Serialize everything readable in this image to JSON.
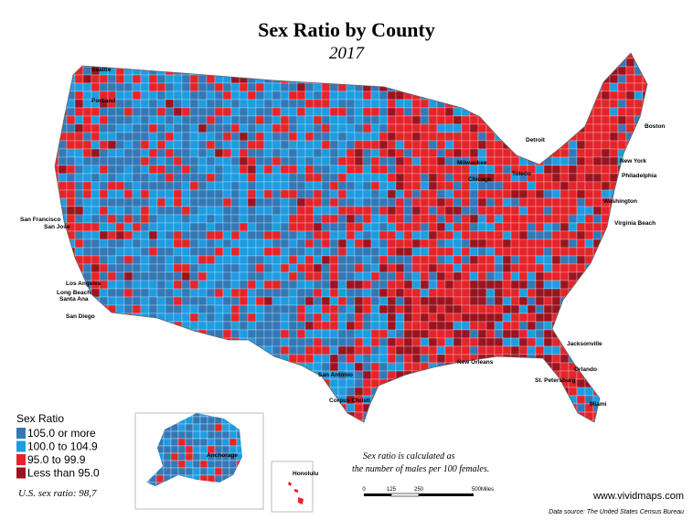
{
  "title": "Sex Ratio by County",
  "subtitle": "2017",
  "legend": {
    "title": "Sex Ratio",
    "items": [
      {
        "label": "105.0 or more",
        "color": "#3378b6"
      },
      {
        "label": "100.0 to 104.9",
        "color": "#1e9ce0"
      },
      {
        "label": "95.0 to 99.9",
        "color": "#e4242b"
      },
      {
        "label": "Less than 95.0",
        "color": "#9a1420"
      }
    ]
  },
  "us_ratio": "U.S.  sex ratio: 98,7",
  "note": [
    "Sex ratio is calculated as",
    "the number of males per 100 females."
  ],
  "scale": [
    "0",
    "125",
    "250",
    "500Miles"
  ],
  "website": "www.vividmaps.com",
  "source": "Data source: The United States Census Bureau",
  "cities": [
    "Seattle",
    "Portland",
    "San Francisco",
    "San Jose",
    "Los Angeles",
    "Long Beach",
    "Santa Ana",
    "San Diego",
    "Boston",
    "New York",
    "Philadelphia",
    "Detroit",
    "Milwaukee",
    "Chicago",
    "Toledo",
    "Washington",
    "Virginia Beach",
    "Jacksonville",
    "Orlando",
    "St. Petersburg",
    "Miami",
    "New Orleans",
    "San Antonio",
    "Corpus Christi",
    "Anchorage",
    "Honolulu"
  ]
}
